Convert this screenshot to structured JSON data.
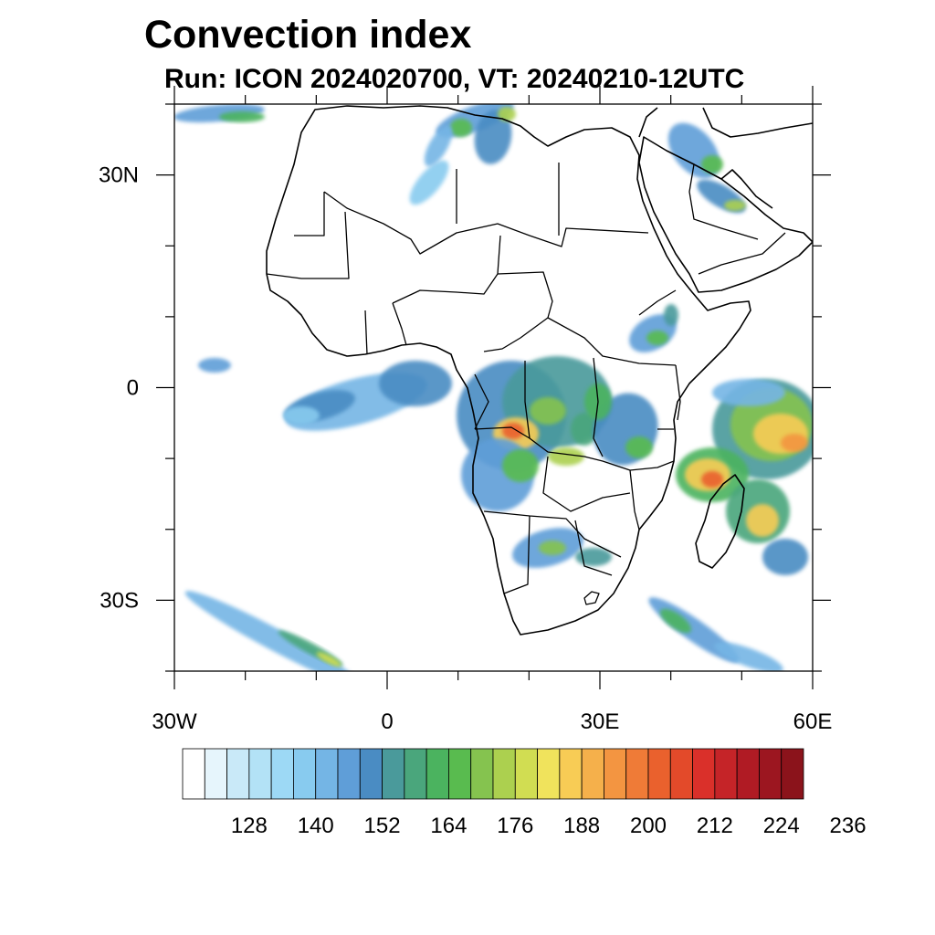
{
  "title": "Convection index",
  "subtitle": "Run: ICON 2024020700,  VT: 20240210-12UTC",
  "map": {
    "projection": "cylindrical-equidistant",
    "lon_range": [
      -30,
      60
    ],
    "lat_range": [
      -40,
      40
    ],
    "lon_ticks": [
      {
        "lon": -30,
        "label": "30W"
      },
      {
        "lon": 0,
        "label": "0"
      },
      {
        "lon": 30,
        "label": "30E"
      },
      {
        "lon": 60,
        "label": "60E"
      }
    ],
    "lat_ticks": [
      {
        "lat": 30,
        "label": "30N"
      },
      {
        "lat": 0,
        "label": "0"
      },
      {
        "lat": -30,
        "label": "30S"
      }
    ],
    "minor_lon_step": 10,
    "minor_lat_step": 10
  },
  "colorbar": {
    "colors": [
      "#ffffff",
      "#e6f5fc",
      "#c9e9f8",
      "#b3e2f6",
      "#9dd9f5",
      "#88cbef",
      "#74b5e5",
      "#5f9ed8",
      "#4a8cc3",
      "#4a9a9b",
      "#4aa67c",
      "#4bb35f",
      "#59bb4f",
      "#85c34f",
      "#acd04f",
      "#d1dd52",
      "#f0e35c",
      "#f8cc55",
      "#f5b04b",
      "#f39541",
      "#ef7b37",
      "#ea612d",
      "#e34a2a",
      "#da302a",
      "#c52428",
      "#b01b24",
      "#9c1620",
      "#8b131b"
    ],
    "labels": [
      "128",
      "140",
      "152",
      "164",
      "176",
      "188",
      "200",
      "212",
      "224",
      "236"
    ]
  }
}
